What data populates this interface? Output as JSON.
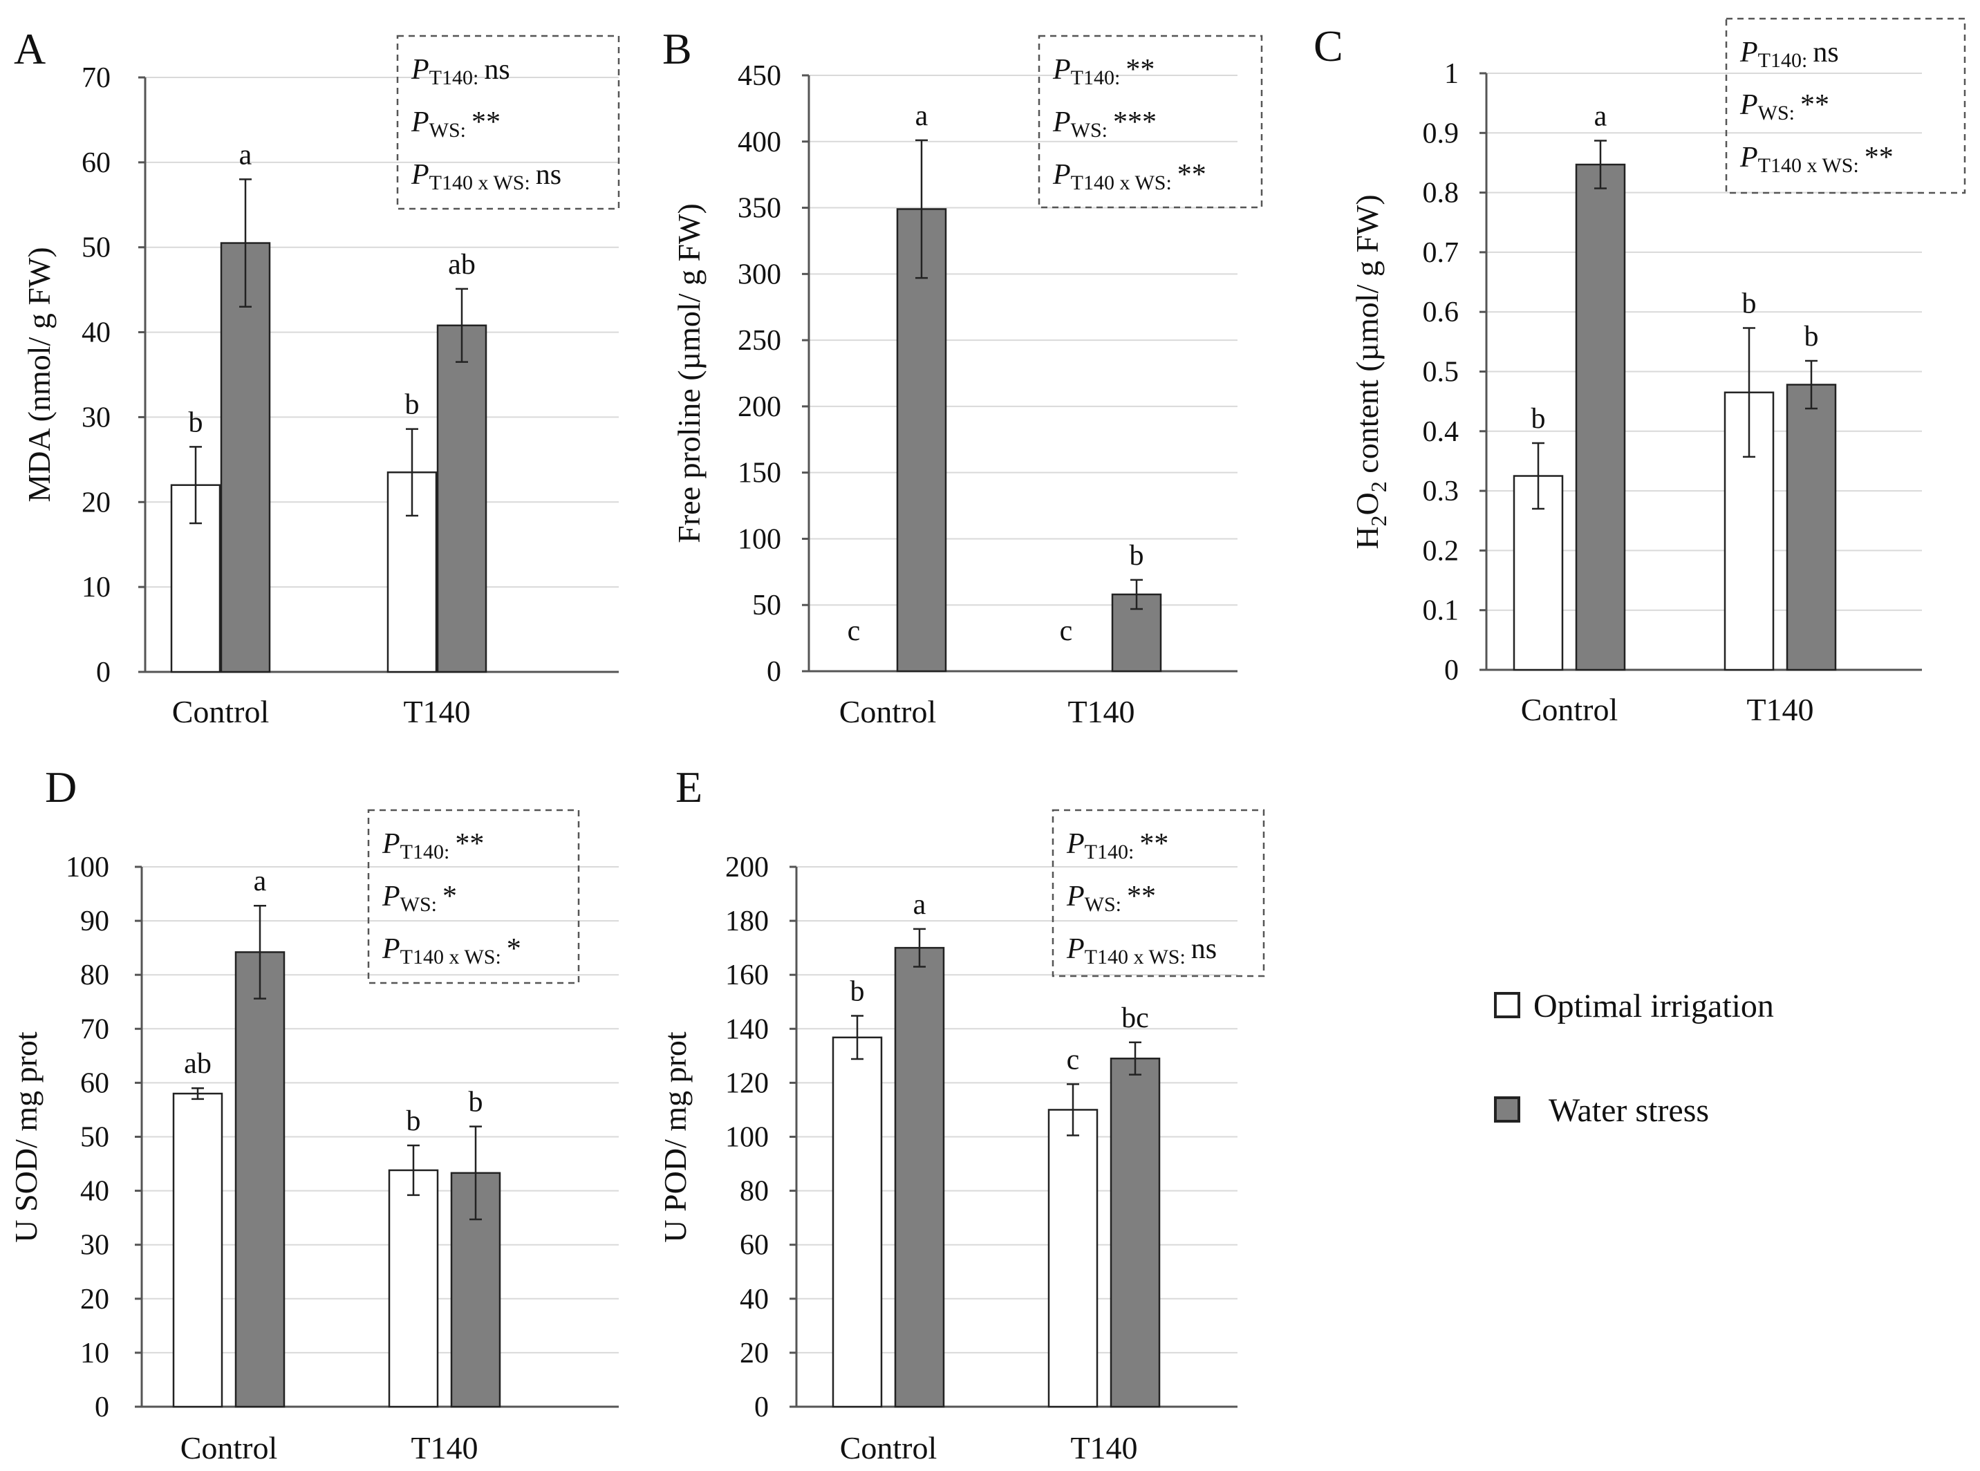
{
  "legend": [
    {
      "label": "Optimal irrigation",
      "color": "#ffffff"
    },
    {
      "label": "Water stress",
      "color": "#7f7f7f"
    }
  ],
  "chart_data": [
    {
      "type": "bar",
      "panel_label": "A",
      "categories": [
        "Control",
        "T140"
      ],
      "series": [
        {
          "name": "Optimal irrigation",
          "values": [
            22,
            23.5
          ],
          "errors": [
            4.5,
            5.1
          ]
        },
        {
          "name": "Water stress",
          "values": [
            50.5,
            40.8
          ],
          "errors": [
            7.5,
            4.3
          ]
        }
      ],
      "ylabel": "MDA (nmol/ g FW)",
      "ylabel_sub": "",
      "ylabel_rest": "",
      "ylim": [
        0,
        70
      ],
      "yticks": [
        "0",
        "10",
        "20",
        "30",
        "40",
        "50",
        "60",
        "70"
      ],
      "grid": true,
      "sig_letters": [
        [
          "b",
          "a"
        ],
        [
          "b",
          "ab"
        ]
      ],
      "stats": [
        {
          "P": "P",
          "sub": "T140:",
          "value": "ns"
        },
        {
          "P": "P",
          "sub": "WS:",
          "value": "**"
        },
        {
          "P": "P",
          "sub": "T140 x WS:",
          "value": "ns"
        }
      ]
    },
    {
      "type": "bar",
      "panel_label": "B",
      "categories": [
        "Control",
        "T140"
      ],
      "series": [
        {
          "name": "Optimal irrigation",
          "values": [
            0,
            0
          ],
          "errors": [
            0,
            0
          ]
        },
        {
          "name": "Water stress",
          "values": [
            349,
            58
          ],
          "errors": [
            52,
            11
          ]
        }
      ],
      "ylabel": "Free proline (µmol/ g FW)",
      "ylabel_sub": "",
      "ylabel_rest": "",
      "ylim": [
        0,
        450
      ],
      "yticks": [
        "0",
        "50",
        "100",
        "150",
        "200",
        "250",
        "300",
        "350",
        "400",
        "450"
      ],
      "grid": true,
      "sig_letters": [
        [
          "c",
          "a"
        ],
        [
          "c",
          "b"
        ]
      ],
      "stats": [
        {
          "P": "P",
          "sub": "T140:",
          "value": "**"
        },
        {
          "P": "P",
          "sub": "WS:",
          "value": "***"
        },
        {
          "P": "P",
          "sub": "T140 x WS:",
          "value": "**"
        }
      ]
    },
    {
      "type": "bar",
      "panel_label": "C",
      "categories": [
        "Control",
        "T140"
      ],
      "series": [
        {
          "name": "Optimal irrigation",
          "values": [
            0.325,
            0.465
          ],
          "errors": [
            0.055,
            0.108
          ]
        },
        {
          "name": "Water stress",
          "values": [
            0.847,
            0.478
          ],
          "errors": [
            0.04,
            0.04
          ]
        }
      ],
      "ylabel": "H",
      "ylabel_sub": "2",
      "ylabel_rest": "O",
      "ylabel_sub2": "2",
      "ylabel_tail": " content (µmol/ g FW)",
      "ylim": [
        0,
        1
      ],
      "yticks": [
        "0",
        "0.1",
        "0.2",
        "0.3",
        "0.4",
        "0.5",
        "0.6",
        "0.7",
        "0.8",
        "0.9",
        "1"
      ],
      "grid": true,
      "sig_letters": [
        [
          "b",
          "a"
        ],
        [
          "b",
          "b"
        ]
      ],
      "stats": [
        {
          "P": "P",
          "sub": "T140:",
          "value": "ns"
        },
        {
          "P": "P",
          "sub": "WS:",
          "value": "**"
        },
        {
          "P": "P",
          "sub": "T140 x WS:",
          "value": "**"
        }
      ]
    },
    {
      "type": "bar",
      "panel_label": "D",
      "categories": [
        "Control",
        "T140"
      ],
      "series": [
        {
          "name": "Optimal irrigation",
          "values": [
            58,
            43.8
          ],
          "errors": [
            1,
            4.6
          ]
        },
        {
          "name": "Water stress",
          "values": [
            84.2,
            43.3
          ],
          "errors": [
            8.6,
            8.6
          ]
        }
      ],
      "ylabel": "U SOD/ mg prot",
      "ylabel_sub": "",
      "ylabel_rest": "",
      "ylim": [
        0,
        100
      ],
      "yticks": [
        "0",
        "10",
        "20",
        "30",
        "40",
        "50",
        "60",
        "70",
        "80",
        "90",
        "100"
      ],
      "grid": true,
      "sig_letters": [
        [
          "ab",
          "a"
        ],
        [
          "b",
          "b"
        ]
      ],
      "stats": [
        {
          "P": "P",
          "sub": "T140:",
          "value": "**"
        },
        {
          "P": "P",
          "sub": "WS:",
          "value": "*"
        },
        {
          "P": "P",
          "sub": "T140 x WS:",
          "value": "*"
        }
      ]
    },
    {
      "type": "bar",
      "panel_label": "E",
      "categories": [
        "Control",
        "T140"
      ],
      "series": [
        {
          "name": "Optimal irrigation",
          "values": [
            136.8,
            110
          ],
          "errors": [
            8,
            9.5
          ]
        },
        {
          "name": "Water stress",
          "values": [
            170,
            129
          ],
          "errors": [
            7,
            6
          ]
        }
      ],
      "ylabel": "U POD/ mg prot",
      "ylabel_sub": "",
      "ylabel_rest": "",
      "ylim": [
        0,
        200
      ],
      "yticks": [
        "0",
        "20",
        "40",
        "60",
        "80",
        "100",
        "120",
        "140",
        "160",
        "180",
        "200"
      ],
      "grid": true,
      "sig_letters": [
        [
          "b",
          "a"
        ],
        [
          "c",
          "bc"
        ]
      ],
      "stats": [
        {
          "P": "P",
          "sub": "T140:",
          "value": "**"
        },
        {
          "P": "P",
          "sub": "WS:",
          "value": "**"
        },
        {
          "P": "P",
          "sub": "T140 x WS:",
          "value": "ns"
        }
      ]
    }
  ]
}
